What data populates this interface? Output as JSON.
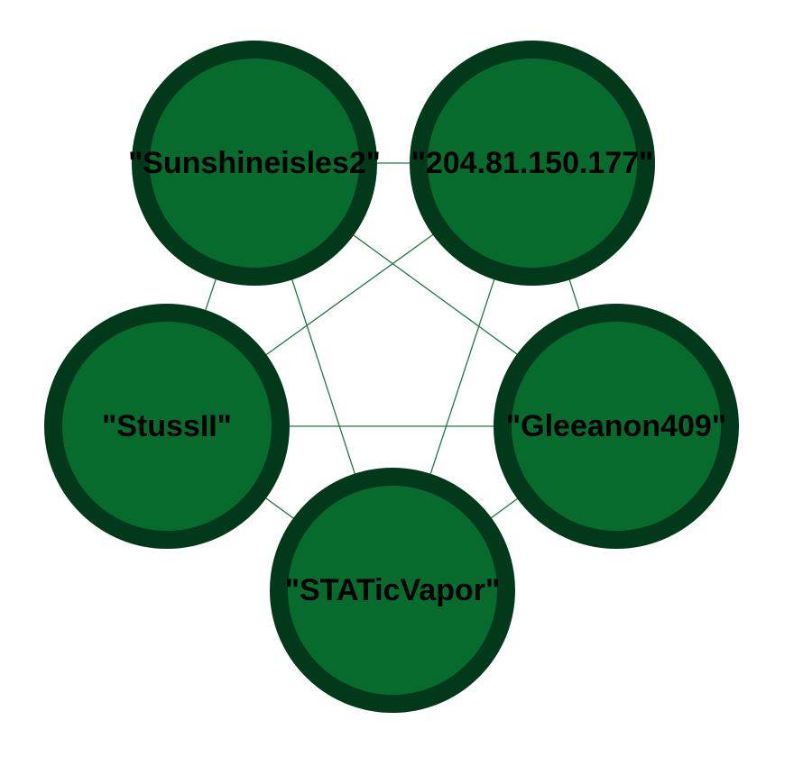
{
  "graph": {
    "colors": {
      "edge": "#1e7a3e",
      "node_fill": "#076b2e",
      "node_stroke": "#02391a",
      "label": "#000000"
    },
    "nodes": [
      {
        "id": "n1",
        "label": "\"Sunshineisles2\""
      },
      {
        "id": "n2",
        "label": "\"204.81.150.177\""
      },
      {
        "id": "n3",
        "label": "\"StussII\""
      },
      {
        "id": "n4",
        "label": "\"Gleeanon409\""
      },
      {
        "id": "n5",
        "label": "\"STATicVapor\""
      }
    ],
    "edges": [
      [
        "n1",
        "n2"
      ],
      [
        "n1",
        "n3"
      ],
      [
        "n1",
        "n4"
      ],
      [
        "n1",
        "n5"
      ],
      [
        "n2",
        "n3"
      ],
      [
        "n2",
        "n4"
      ],
      [
        "n2",
        "n5"
      ],
      [
        "n3",
        "n4"
      ],
      [
        "n3",
        "n5"
      ],
      [
        "n4",
        "n5"
      ]
    ]
  }
}
